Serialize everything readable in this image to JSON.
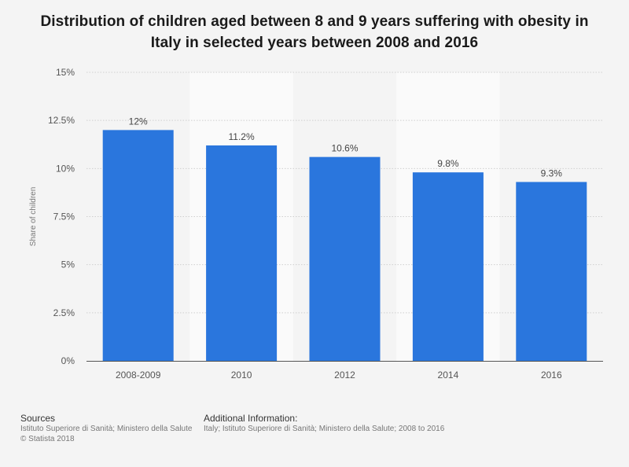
{
  "title": "Distribution of children aged between 8 and 9 years suffering with obesity in Italy in selected years between 2008 and 2016",
  "chart_data": {
    "type": "bar",
    "categories": [
      "2008-2009",
      "2010",
      "2012",
      "2014",
      "2016"
    ],
    "values": [
      12,
      11.2,
      10.6,
      9.8,
      9.3
    ],
    "value_labels": [
      "12%",
      "11.2%",
      "10.6%",
      "9.8%",
      "9.3%"
    ],
    "ylabel": "Share of children",
    "xlabel": "",
    "ylim": [
      0,
      15
    ],
    "yticks": [
      0,
      2.5,
      5,
      7.5,
      10,
      12.5,
      15
    ],
    "ytick_labels": [
      "0%",
      "2.5%",
      "5%",
      "7.5%",
      "10%",
      "12.5%",
      "15%"
    ],
    "grid": true,
    "bar_color": "#2a76dd"
  },
  "footer": {
    "sources_heading": "Sources",
    "sources_text": "Istituto Superiore di Sanità; Ministero della Salute",
    "copyright": "© Statista 2018",
    "additional_heading": "Additional Information:",
    "additional_text": "Italy; Istituto Superiore di Sanità; Ministero della Salute; 2008 to 2016"
  }
}
